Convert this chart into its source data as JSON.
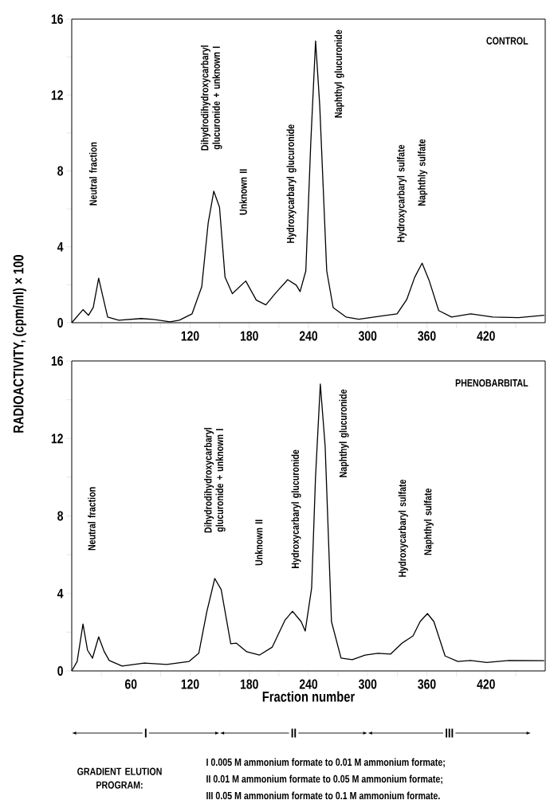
{
  "chart_data": [
    {
      "type": "line",
      "title": "CONTROL",
      "ylabel": "RADIOACTIVITY, (cpm/ml) × 100",
      "xlim": [
        0,
        480
      ],
      "ylim": [
        0,
        16
      ],
      "xticks": [
        {
          "value": 30,
          "label": null
        },
        {
          "value": 60,
          "label": null
        },
        {
          "value": 90,
          "label": null
        },
        120,
        {
          "value": 150,
          "label": null
        },
        180,
        {
          "value": 210,
          "label": null
        },
        240,
        {
          "value": 270,
          "label": null
        },
        300,
        {
          "value": 330,
          "label": null
        },
        360,
        {
          "value": 390,
          "label": null
        },
        420,
        {
          "value": 450,
          "label": null
        }
      ],
      "yticks": [
        0,
        {
          "value": 2,
          "label": null
        },
        4,
        {
          "value": 6,
          "label": null
        },
        8,
        {
          "value": 10,
          "label": null
        },
        12,
        {
          "value": 14,
          "label": null
        },
        16
      ],
      "marker": "none",
      "line_style": "solid",
      "series": [
        {
          "color": "#000000",
          "x": [
            0,
            11.4,
            17,
            21.8,
            27.3,
            31.5,
            36.4,
            47.7,
            70.4,
            83,
            99.6,
            109,
            122,
            131.8,
            138.3,
            144,
            149.8,
            155.4,
            162.8,
            176.4,
            187.1,
            196.8,
            206.6,
            218.9,
            227.6,
            231.5,
            237.3,
            242.3,
            247.2,
            251.4,
            258.5,
            265,
            278,
            291,
            313.7,
            329.8,
            339.6,
            347.7,
            355.2,
            362.3,
            372,
            385,
            404.5,
            427,
            453,
            479
          ],
          "values": [
            0,
            0.69,
            0.39,
            0.8,
            2.35,
            1.39,
            0.3,
            0.13,
            0.22,
            0.17,
            0.05,
            0.13,
            0.47,
            1.9,
            5.25,
            6.93,
            6.09,
            2.4,
            1.53,
            2.2,
            1.19,
            0.94,
            1.56,
            2.27,
            1.98,
            1.64,
            2.73,
            9.45,
            14.85,
            11.46,
            2.73,
            0.8,
            0.3,
            0.18,
            0.35,
            0.47,
            1.22,
            2.4,
            3.14,
            2.23,
            0.64,
            0.3,
            0.47,
            0.3,
            0.27,
            0.39
          ]
        }
      ],
      "annotations": [
        "Neutral fraction",
        "Dihydrodihydroxycarbaryl glucuronide + unknown I",
        "Unknown II",
        "Hydroxycarbaryl glucuronide",
        "Naphthyl glucuronide",
        "Hydroxycarbaryl sulfate",
        "Naphthly sulfate"
      ]
    },
    {
      "type": "line",
      "title": "PHENOBARBITAL",
      "xlabel": "Fraction number",
      "xlim": [
        0,
        480
      ],
      "ylim": [
        0,
        16
      ],
      "xticks": [
        {
          "value": 30,
          "label": null
        },
        60,
        {
          "value": 90,
          "label": null
        },
        120,
        {
          "value": 150,
          "label": null
        },
        180,
        {
          "value": 210,
          "label": null
        },
        240,
        {
          "value": 270,
          "label": null
        },
        300,
        {
          "value": 330,
          "label": null
        },
        360,
        {
          "value": 390,
          "label": null
        },
        420,
        {
          "value": 450,
          "label": null
        }
      ],
      "yticks": [
        0,
        {
          "value": 2,
          "label": null
        },
        4,
        {
          "value": 6,
          "label": null
        },
        8,
        {
          "value": 10,
          "label": null
        },
        12,
        {
          "value": 14,
          "label": null
        },
        16
      ],
      "marker": "none",
      "line_style": "solid",
      "series": [
        {
          "color": "#000000",
          "x": [
            0,
            5.5,
            11.4,
            16,
            21,
            27.3,
            33,
            38,
            51,
            73.6,
            96.3,
            119,
            128.8,
            136.9,
            145,
            151.5,
            161.2,
            167,
            177.4,
            190.4,
            203.3,
            216.3,
            223.8,
            232.5,
            236.7,
            243.2,
            247.1,
            252,
            256.9,
            263.3,
            273,
            284.4,
            297.4,
            310.4,
            323.3,
            334.7,
            346,
            353.2,
            360.6,
            367.1,
            378.5,
            391.4,
            404.4,
            420.6,
            443.3,
            479
          ],
          "values": [
            0,
            0.49,
            2.42,
            1.07,
            0.66,
            1.76,
            0.99,
            0.54,
            0.25,
            0.41,
            0.33,
            0.49,
            0.91,
            3.05,
            4.77,
            4.2,
            1.4,
            1.43,
            0.99,
            0.82,
            1.23,
            2.63,
            3.08,
            2.55,
            2.06,
            4.28,
            9.96,
            14.81,
            11.6,
            2.55,
            0.66,
            0.58,
            0.82,
            0.91,
            0.87,
            1.43,
            1.81,
            2.55,
            2.96,
            2.55,
            0.77,
            0.49,
            0.54,
            0.44,
            0.54,
            0.53
          ]
        }
      ],
      "annotations": [
        "Neutral fraction",
        "Dihydrodihydroxycarbaryl glucuronide + unknown I",
        "Unknown II",
        "Hydroxycarbaryl glucuronide",
        "Naphthyl glucuronide",
        "Hydroxycarbaryl sulfate",
        "Naphthyl sulfate",
        "I",
        "II",
        "III",
        "GRADIENT ELUTION PROGRAM:",
        "I  0.005 M ammonium formate to 0.01 M ammonium formate;",
        "II  0.01 M ammonium formate to 0.05 M ammonium formate;",
        "III  0.05 M ammonium formate to 0.1 M ammonium formate."
      ]
    }
  ]
}
